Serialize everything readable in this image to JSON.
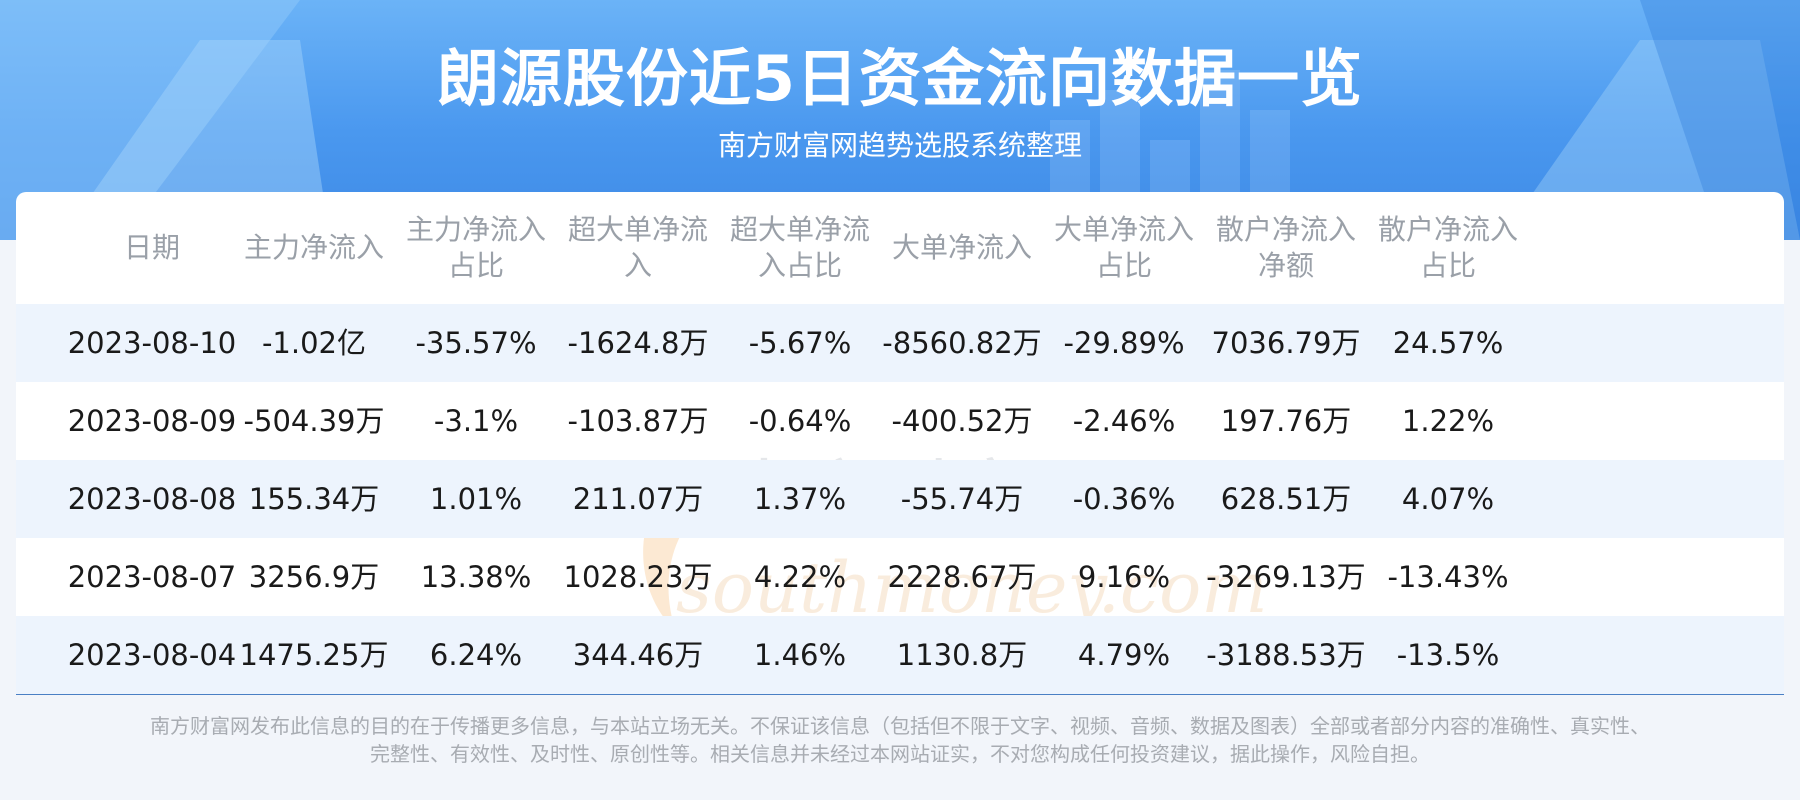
{
  "header": {
    "title": "朗源股份近5日资金流向数据一览",
    "subtitle": "南方财富网趋势选股系统整理"
  },
  "table": {
    "columns": [
      [
        "日期"
      ],
      [
        "主力净流入"
      ],
      [
        "主力净流入",
        "占比"
      ],
      [
        "超大单净流",
        "入"
      ],
      [
        "超大单净流",
        "入占比"
      ],
      [
        "大单净流入"
      ],
      [
        "大单净流入",
        "占比"
      ],
      [
        "散户净流入",
        "净额"
      ],
      [
        "散户净流入",
        "占比"
      ]
    ],
    "rows": [
      [
        "2023-08-10",
        "-1.02亿",
        "-35.57%",
        "-1624.8万",
        "-5.67%",
        "-8560.82万",
        "-29.89%",
        "7036.79万",
        "24.57%"
      ],
      [
        "2023-08-09",
        "-504.39万",
        "-3.1%",
        "-103.87万",
        "-0.64%",
        "-400.52万",
        "-2.46%",
        "197.76万",
        "1.22%"
      ],
      [
        "2023-08-08",
        "155.34万",
        "1.01%",
        "211.07万",
        "1.37%",
        "-55.74万",
        "-0.36%",
        "628.51万",
        "4.07%"
      ],
      [
        "2023-08-07",
        "3256.9万",
        "13.38%",
        "1028.23万",
        "4.22%",
        "2228.67万",
        "9.16%",
        "-3269.13万",
        "-13.43%"
      ],
      [
        "2023-08-04",
        "1475.25万",
        "6.24%",
        "344.46万",
        "1.46%",
        "1130.8万",
        "4.79%",
        "-3188.53万",
        "-13.5%"
      ]
    ]
  },
  "watermark": {
    "cn": "南方财富网",
    "en": "southmoney.com"
  },
  "footer": {
    "line1": "南方财富网发布此信息的目的在于传播更多信息，与本站立场无关。不保证该信息（包括但不限于文字、视频、音频、数据及图表）全部或者部分内容的准确性、真实性、",
    "line2": "完整性、有效性、及时性、原创性等。相关信息并未经过本网站证实，不对您构成任何投资建议，据此操作，风险自担。"
  },
  "colors": {
    "banner": "#4a98ef",
    "shade_row": "#edf4fd",
    "header_text": "#9aa0a8",
    "cell_text": "#1a1a1a"
  }
}
